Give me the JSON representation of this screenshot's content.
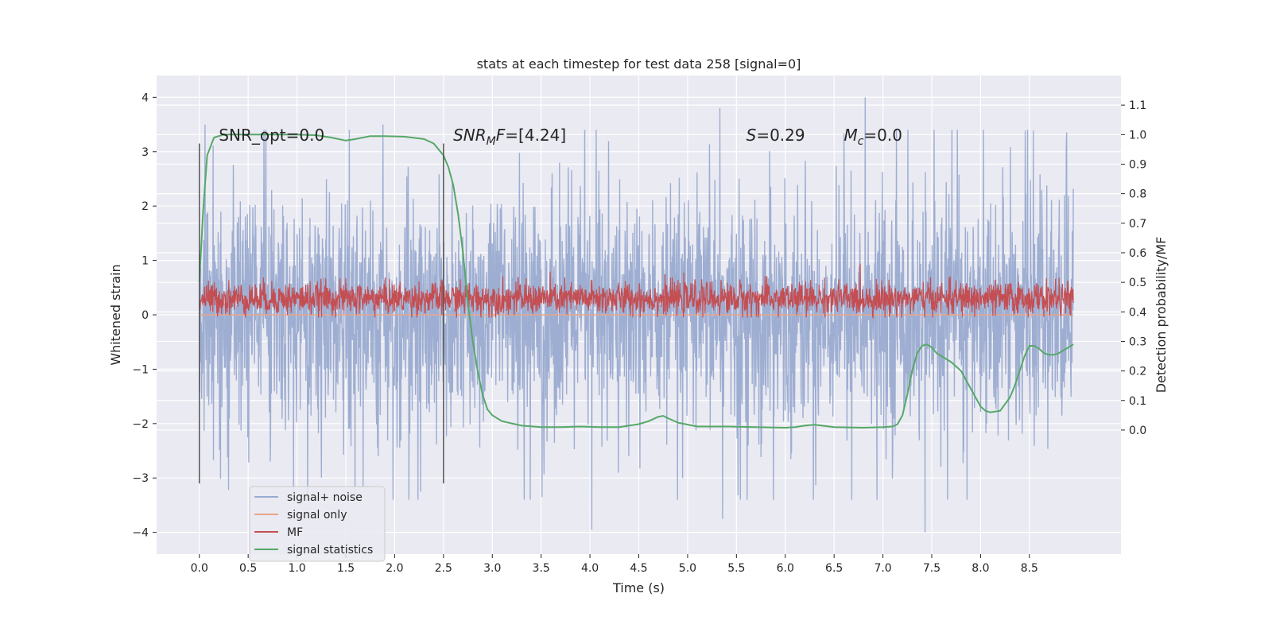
{
  "chart_data": {
    "type": "line",
    "title": "stats at each timestep for test data 258 [signal=0]",
    "xlabel": "Time (s)",
    "ylabel": "Whitened strain",
    "ylabel_right": "Detection probability/MF",
    "xlim": [
      -0.4375,
      9.4375
    ],
    "ylim": [
      -4.4,
      4.4
    ],
    "ylim_right": [
      -0.42,
      1.2
    ],
    "x_ticks": [
      "0.0",
      "0.5",
      "1.0",
      "1.5",
      "2.0",
      "2.5",
      "3.0",
      "3.5",
      "4.0",
      "4.5",
      "5.0",
      "5.5",
      "6.0",
      "6.5",
      "7.0",
      "7.5",
      "8.0",
      "8.5"
    ],
    "y_ticks": [
      "4",
      "3",
      "2",
      "1",
      "0",
      "−1",
      "−2",
      "−3",
      "−4"
    ],
    "y_ticks_values": [
      4,
      3,
      2,
      1,
      0,
      -1,
      -2,
      -3,
      -4
    ],
    "y_ticks_right": [
      "1.1",
      "1.0",
      "0.9",
      "0.8",
      "0.7",
      "0.6",
      "0.5",
      "0.4",
      "0.3",
      "0.2",
      "0.1",
      "0.0"
    ],
    "y_ticks_right_values": [
      1.1,
      1.0,
      0.9,
      0.8,
      0.7,
      0.6,
      0.5,
      0.4,
      0.3,
      0.2,
      0.1,
      0.0
    ],
    "grid": true,
    "legend_position": "lower-left",
    "annotations": [
      {
        "text": "SNR_opt=0.0",
        "x": 0.2,
        "y": 3.2
      },
      {
        "text": "SNR_MF=[4.24]",
        "x": 2.6,
        "y": 3.2
      },
      {
        "text": "S=0.29",
        "x": 5.6,
        "y": 3.2
      },
      {
        "text": "M_c=0.0",
        "x": 6.6,
        "y": 3.2
      }
    ],
    "vertical_markers": [
      {
        "x": 0.0,
        "y_range": [
          -3.1,
          3.15
        ]
      },
      {
        "x": 2.5,
        "y_range": [
          -3.1,
          3.15
        ]
      }
    ],
    "series": [
      {
        "name": "signal+ noise",
        "color": "#9aabd0",
        "axis": "left",
        "x_range": [
          0.0,
          8.95
        ],
        "description": "whitened noise, spikes up to about 4.0 and down to about -4.0",
        "typical_upper": 1.3,
        "typical_lower": -1.3,
        "extremes": [
          [
            0.06,
            3.5
          ],
          [
            1.88,
            3.5
          ],
          [
            5.33,
            3.8
          ],
          [
            6.82,
            4.0
          ],
          [
            4.02,
            -3.95
          ],
          [
            5.36,
            -3.75
          ],
          [
            7.43,
            -4.0
          ],
          [
            3.39,
            -3.4
          ],
          [
            3.51,
            -3.35
          ]
        ]
      },
      {
        "name": "signal only",
        "color": "#e8a58a",
        "axis": "left",
        "x": [
          0.0,
          8.95
        ],
        "y": [
          0.0,
          0.0
        ]
      },
      {
        "name": "MF",
        "color": "#c44e52",
        "axis": "left",
        "x_range": [
          0.0,
          8.95
        ],
        "mean": 0.3,
        "amplitude": 0.3
      },
      {
        "name": "signal statistics",
        "color": "#55a868",
        "axis": "right",
        "x": [
          0.0,
          0.04,
          0.08,
          0.15,
          0.25,
          0.5,
          1.0,
          1.2,
          1.35,
          1.5,
          1.6,
          1.75,
          1.9,
          2.1,
          2.3,
          2.4,
          2.5,
          2.55,
          2.6,
          2.65,
          2.7,
          2.75,
          2.8,
          2.85,
          2.9,
          2.95,
          3.0,
          3.1,
          3.3,
          3.5,
          3.7,
          3.9,
          4.1,
          4.3,
          4.5,
          4.6,
          4.7,
          4.75,
          4.8,
          4.9,
          5.1,
          5.4,
          5.7,
          6.0,
          6.1,
          6.2,
          6.3,
          6.5,
          6.8,
          7.0,
          7.1,
          7.15,
          7.2,
          7.25,
          7.3,
          7.35,
          7.4,
          7.45,
          7.5,
          7.55,
          7.6,
          7.7,
          7.8,
          7.9,
          8.0,
          8.05,
          8.1,
          8.2,
          8.3,
          8.35,
          8.4,
          8.45,
          8.5,
          8.55,
          8.6,
          8.65,
          8.7,
          8.75,
          8.8,
          8.9,
          8.95
        ],
        "y": [
          0.5,
          0.75,
          0.93,
          0.99,
          1.0,
          1.0,
          1.0,
          0.998,
          0.99,
          0.98,
          0.985,
          0.995,
          0.995,
          0.993,
          0.985,
          0.97,
          0.93,
          0.89,
          0.83,
          0.73,
          0.6,
          0.43,
          0.3,
          0.2,
          0.12,
          0.07,
          0.05,
          0.03,
          0.015,
          0.01,
          0.01,
          0.012,
          0.01,
          0.01,
          0.02,
          0.03,
          0.045,
          0.048,
          0.04,
          0.025,
          0.012,
          0.012,
          0.01,
          0.008,
          0.01,
          0.015,
          0.018,
          0.01,
          0.008,
          0.01,
          0.012,
          0.02,
          0.05,
          0.12,
          0.2,
          0.26,
          0.285,
          0.29,
          0.28,
          0.26,
          0.25,
          0.23,
          0.2,
          0.14,
          0.08,
          0.065,
          0.06,
          0.065,
          0.11,
          0.15,
          0.2,
          0.25,
          0.285,
          0.285,
          0.275,
          0.26,
          0.255,
          0.255,
          0.26,
          0.28,
          0.29
        ]
      }
    ]
  }
}
